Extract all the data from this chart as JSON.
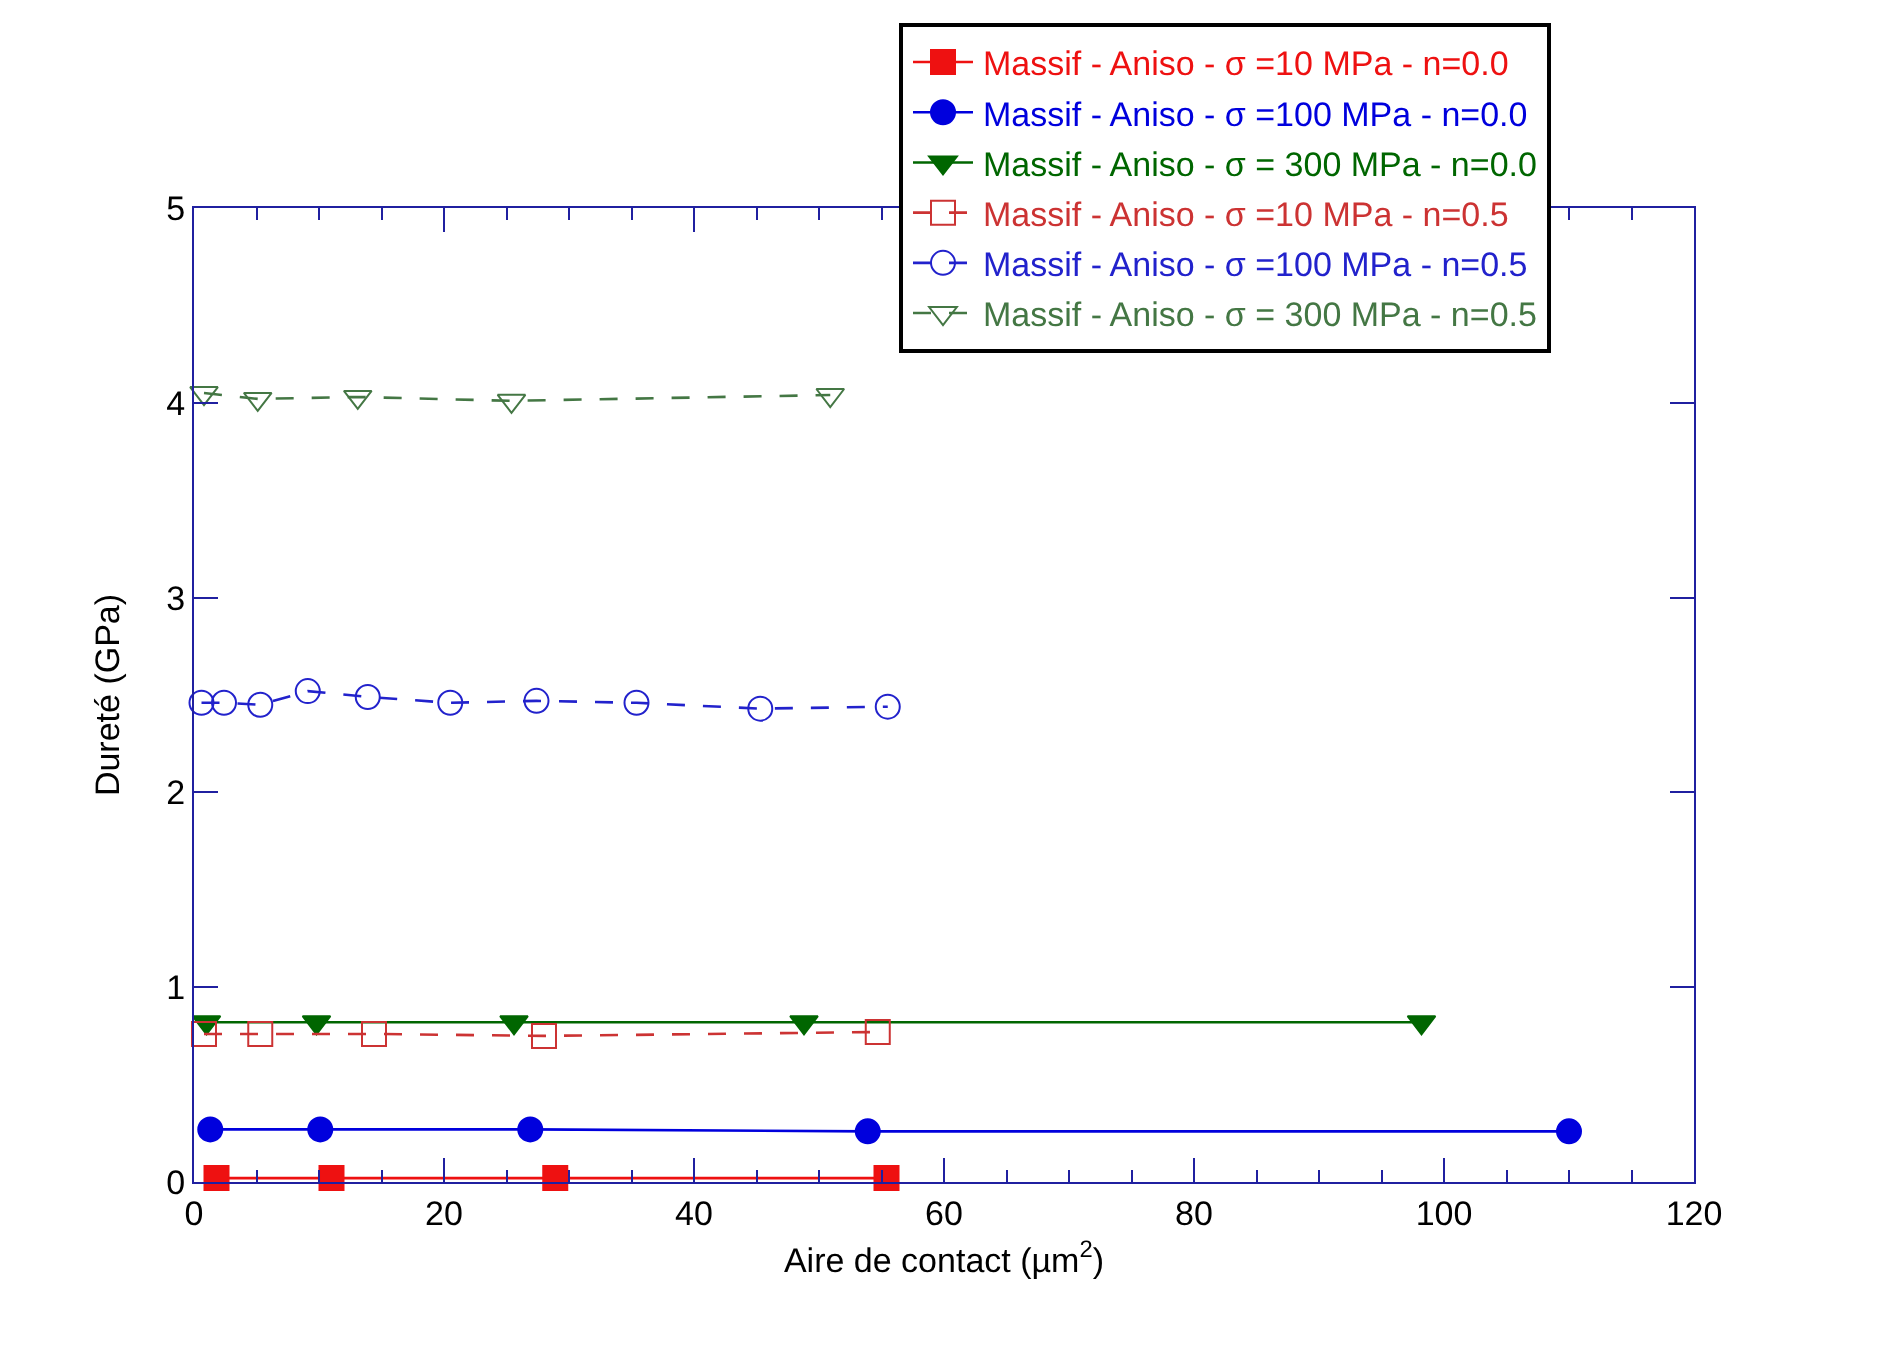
{
  "chart_data": {
    "type": "line",
    "xlabel": "Aire de contact (µm$^{2}$)",
    "ylabel": "Dureté (GPa)",
    "xlim": [
      0,
      120
    ],
    "xticks": [
      0,
      20,
      40,
      60,
      80,
      100,
      120
    ],
    "ylim": [
      0,
      5
    ],
    "yticks": [
      0,
      1,
      2,
      3,
      4,
      5
    ],
    "grid": false,
    "legend": "top right",
    "series": [
      {
        "name": "Massif - Aniso - σ =10 MPa - n=0.0",
        "color": "#ee1111",
        "marker": "square",
        "line_style": "solid",
        "x": [
          1.8,
          11,
          28.9,
          55.4
        ],
        "values": [
          0.02,
          0.02,
          0.02,
          0.02
        ]
      },
      {
        "name": "Massif - Aniso - σ =100 MPa - n=0.0",
        "color": "#0000dd",
        "marker": "circle",
        "line_style": "solid",
        "x": [
          1.3,
          10.1,
          26.9,
          53.9,
          110
        ],
        "values": [
          0.27,
          0.27,
          0.27,
          0.26,
          0.26
        ]
      },
      {
        "name": "Massif - Aniso - σ = 300 MPa - n=0.0",
        "color": "#006600",
        "marker": "triangle",
        "line_style": "solid",
        "x": [
          1,
          9.8,
          25.6,
          48.8,
          98.2
        ],
        "values": [
          0.82,
          0.82,
          0.82,
          0.82,
          0.82
        ]
      },
      {
        "name": "Massif - Aniso - σ =10 MPa - n=0.5",
        "color": "#cc3333",
        "marker": "square",
        "line_style": "dashed",
        "x": [
          0.8,
          5.3,
          14.4,
          28,
          54.7
        ],
        "values": [
          0.76,
          0.76,
          0.76,
          0.75,
          0.77
        ]
      },
      {
        "name": "Massif - Aniso - σ =100 MPa - n=0.5",
        "color": "#2222cc",
        "marker": "circle",
        "line_style": "dashed",
        "x": [
          0.6,
          2.4,
          5.3,
          9.1,
          13.9,
          20.5,
          27.4,
          35.4,
          45.3,
          55.5
        ],
        "values": [
          2.46,
          2.46,
          2.45,
          2.52,
          2.49,
          2.46,
          2.47,
          2.46,
          2.43,
          2.44
        ]
      },
      {
        "name": "Massif - Aniso - σ = 300 MPa - n=0.5",
        "color": "#447744",
        "marker": "triangle",
        "line_style": "dashed",
        "x": [
          0.8,
          5.1,
          13.1,
          25.4,
          50.9
        ],
        "values": [
          4.05,
          4.02,
          4.03,
          4.01,
          4.04
        ]
      }
    ]
  }
}
